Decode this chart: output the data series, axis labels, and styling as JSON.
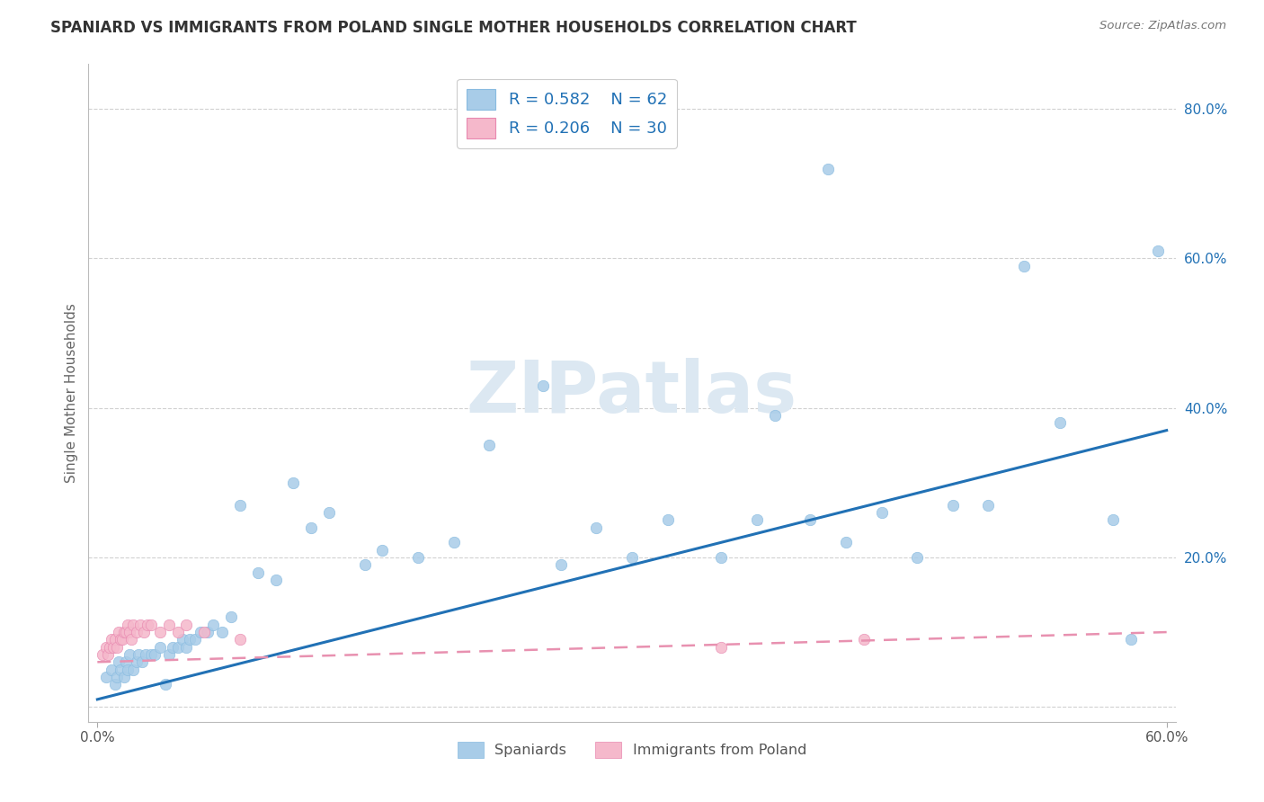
{
  "title": "SPANIARD VS IMMIGRANTS FROM POLAND SINGLE MOTHER HOUSEHOLDS CORRELATION CHART",
  "source": "Source: ZipAtlas.com",
  "ylabel": "Single Mother Households",
  "xlim": [
    0.0,
    0.6
  ],
  "ylim": [
    0.0,
    0.86
  ],
  "xticks": [
    0.0,
    0.1,
    0.2,
    0.3,
    0.4,
    0.5,
    0.6
  ],
  "xticklabels": [
    "0.0%",
    "",
    "",
    "",
    "",
    "",
    "60.0%"
  ],
  "ytick_positions": [
    0.0,
    0.2,
    0.4,
    0.6,
    0.8
  ],
  "yticklabels_right": [
    "",
    "20.0%",
    "40.0%",
    "60.0%",
    "80.0%"
  ],
  "legend_line1": "R = 0.582    N = 62",
  "legend_line2": "R = 0.206    N = 30",
  "blue_scatter_color": "#a8cce8",
  "pink_scatter_color": "#f5b8cb",
  "blue_line_color": "#2171b5",
  "pink_line_color": "#e891b0",
  "watermark_text": "ZIPatlas",
  "watermark_color": "#dce8f2",
  "background_color": "#ffffff",
  "grid_color": "#cccccc",
  "spain_R": 0.582,
  "spain_N": 62,
  "poland_R": 0.206,
  "poland_N": 30,
  "spain_line_x0": 0.0,
  "spain_line_y0": 0.01,
  "spain_line_x1": 0.6,
  "spain_line_y1": 0.37,
  "poland_line_x0": 0.0,
  "poland_line_y0": 0.06,
  "poland_line_x1": 0.6,
  "poland_line_y1": 0.1,
  "spaniards_x": [
    0.005,
    0.008,
    0.01,
    0.011,
    0.012,
    0.013,
    0.015,
    0.016,
    0.017,
    0.018,
    0.02,
    0.022,
    0.023,
    0.025,
    0.027,
    0.03,
    0.032,
    0.035,
    0.038,
    0.04,
    0.042,
    0.045,
    0.048,
    0.05,
    0.052,
    0.055,
    0.058,
    0.062,
    0.065,
    0.07,
    0.075,
    0.08,
    0.09,
    0.1,
    0.11,
    0.12,
    0.13,
    0.15,
    0.16,
    0.18,
    0.2,
    0.22,
    0.25,
    0.26,
    0.28,
    0.3,
    0.32,
    0.35,
    0.37,
    0.38,
    0.4,
    0.41,
    0.42,
    0.44,
    0.46,
    0.48,
    0.5,
    0.52,
    0.54,
    0.57,
    0.58,
    0.595
  ],
  "spaniards_y": [
    0.04,
    0.05,
    0.03,
    0.04,
    0.06,
    0.05,
    0.04,
    0.06,
    0.05,
    0.07,
    0.05,
    0.06,
    0.07,
    0.06,
    0.07,
    0.07,
    0.07,
    0.08,
    0.03,
    0.07,
    0.08,
    0.08,
    0.09,
    0.08,
    0.09,
    0.09,
    0.1,
    0.1,
    0.11,
    0.1,
    0.12,
    0.27,
    0.18,
    0.17,
    0.3,
    0.24,
    0.26,
    0.19,
    0.21,
    0.2,
    0.22,
    0.35,
    0.43,
    0.19,
    0.24,
    0.2,
    0.25,
    0.2,
    0.25,
    0.39,
    0.25,
    0.72,
    0.22,
    0.26,
    0.2,
    0.27,
    0.27,
    0.59,
    0.38,
    0.25,
    0.09,
    0.61
  ],
  "poland_x": [
    0.003,
    0.005,
    0.006,
    0.007,
    0.008,
    0.009,
    0.01,
    0.011,
    0.012,
    0.013,
    0.014,
    0.015,
    0.016,
    0.017,
    0.018,
    0.019,
    0.02,
    0.022,
    0.024,
    0.026,
    0.028,
    0.03,
    0.035,
    0.04,
    0.045,
    0.05,
    0.06,
    0.08,
    0.35,
    0.43
  ],
  "poland_y": [
    0.07,
    0.08,
    0.07,
    0.08,
    0.09,
    0.08,
    0.09,
    0.08,
    0.1,
    0.09,
    0.09,
    0.1,
    0.1,
    0.11,
    0.1,
    0.09,
    0.11,
    0.1,
    0.11,
    0.1,
    0.11,
    0.11,
    0.1,
    0.11,
    0.1,
    0.11,
    0.1,
    0.09,
    0.08,
    0.09
  ]
}
